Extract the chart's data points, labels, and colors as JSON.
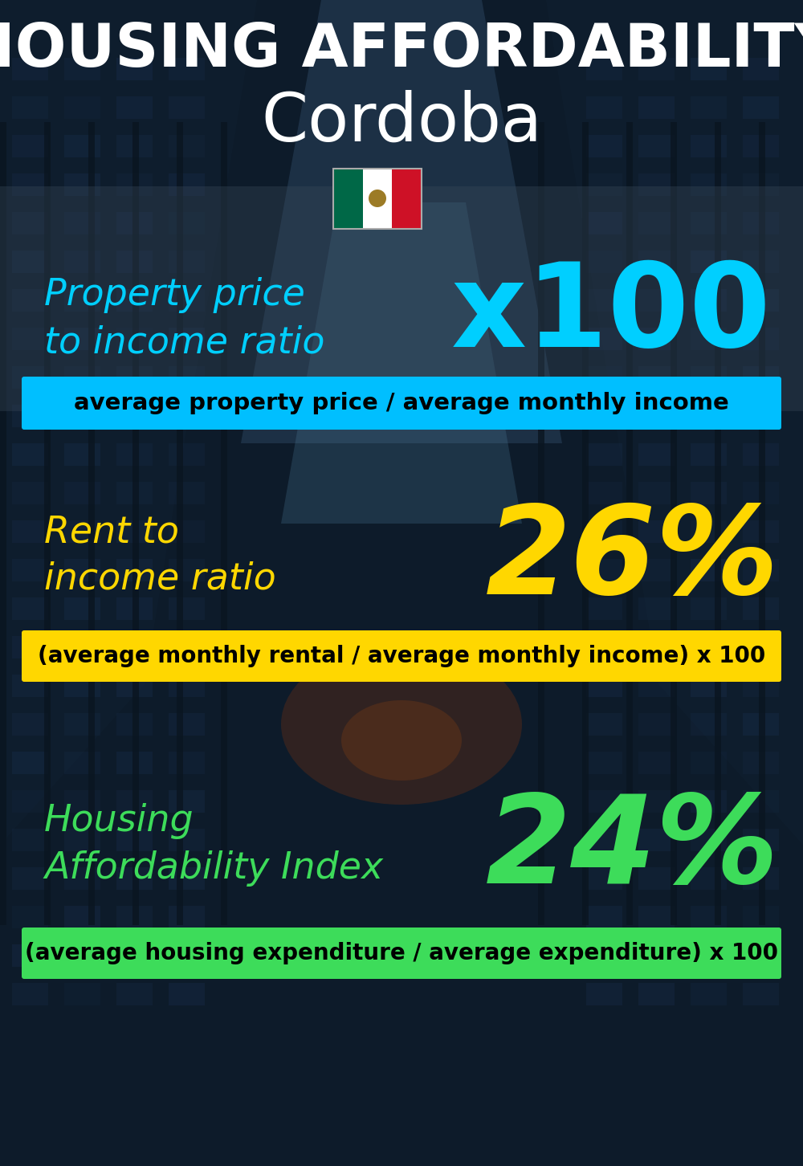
{
  "title_line1": "HOUSING AFFORDABILITY",
  "title_line2": "Cordoba",
  "bg_color": "#0d1b2a",
  "title1_color": "#ffffff",
  "title2_color": "#ffffff",
  "section1_label": "Property price\nto income ratio",
  "section1_value": "x100",
  "section1_label_color": "#00cfff",
  "section1_value_color": "#00cfff",
  "section1_formula": "average property price / average monthly income",
  "section1_formula_bg": "#00bfff",
  "section1_formula_color": "#000000",
  "section2_label": "Rent to\nincome ratio",
  "section2_value": "26%",
  "section2_label_color": "#ffd700",
  "section2_value_color": "#ffd700",
  "section2_formula": "(average monthly rental / average monthly income) x 100",
  "section2_formula_bg": "#ffd700",
  "section2_formula_color": "#000000",
  "section3_label": "Housing\nAffordability Index",
  "section3_value": "24%",
  "section3_label_color": "#3ddc5a",
  "section3_value_color": "#3ddc5a",
  "section3_formula": "(average housing expenditure / average expenditure) x 100",
  "section3_formula_bg": "#3ddc5a",
  "section3_formula_color": "#000000",
  "fig_width": 10.0,
  "fig_height": 14.52
}
